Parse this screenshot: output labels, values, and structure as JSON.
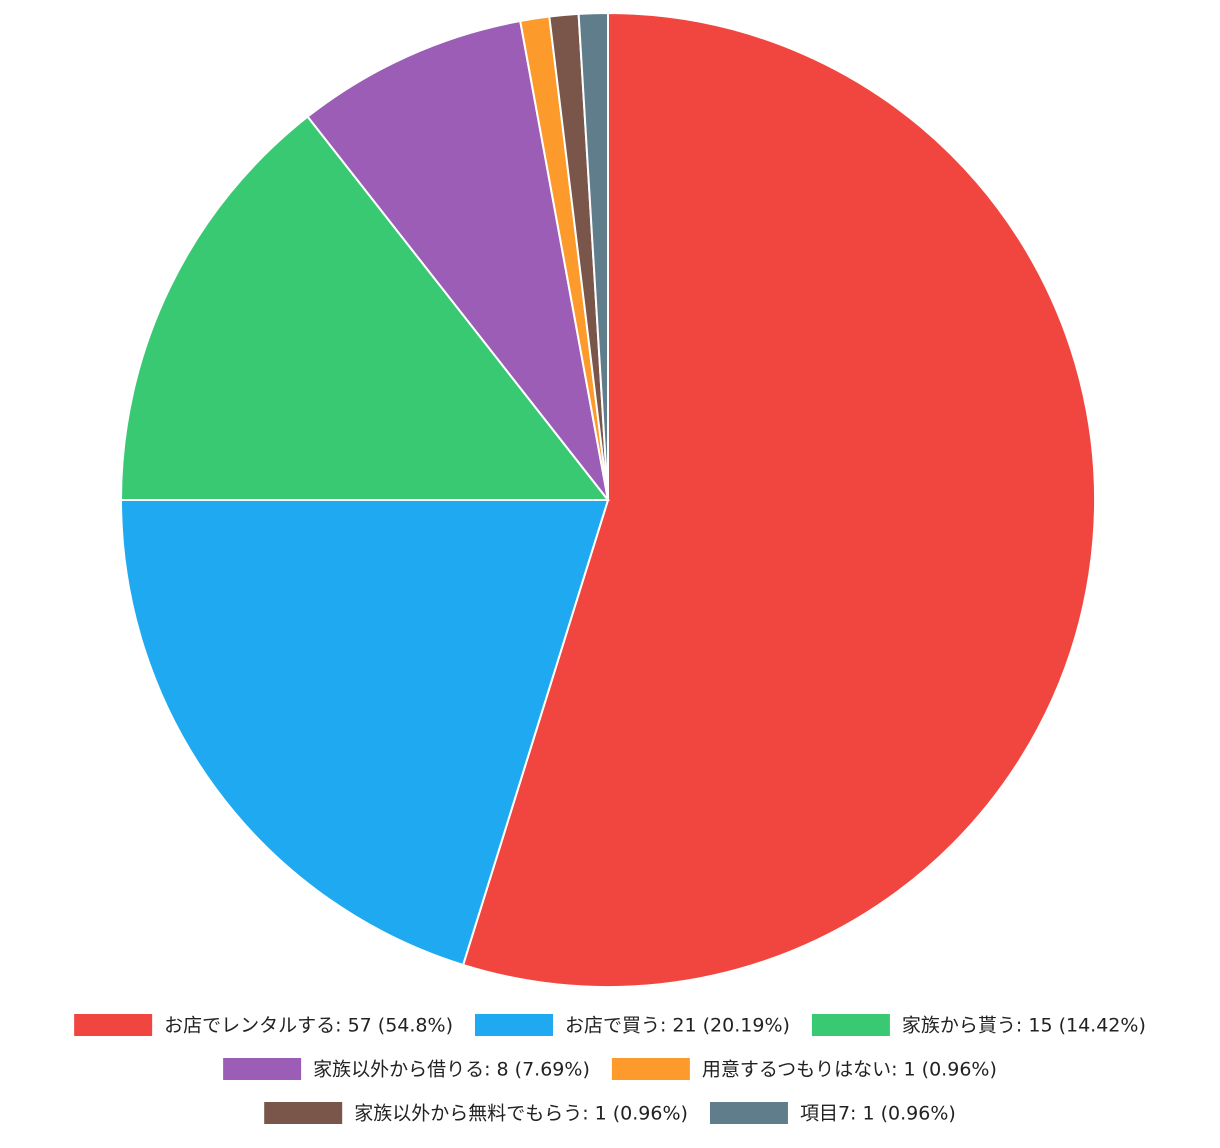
{
  "chart_data": {
    "type": "pie",
    "labels": [
      "お店でレンタルする: 57 (54.8%)",
      "お店で買う: 21 (20.19%)",
      "家族から貰う: 15 (14.42%)",
      "家族以外から借りる: 8 (7.69%)",
      "用意するつもりはない: 1 (0.96%)",
      "家族以外から無料でもらう: 1 (0.96%)",
      "項目7: 1 (0.96%)"
    ],
    "values": [
      57,
      21,
      15,
      8,
      1,
      1,
      1
    ],
    "colors": [
      "#f1463f",
      "#1fa9f0",
      "#3ac973",
      "#9b5db5",
      "#fc9a2c",
      "#79554a",
      "#5f7d8b"
    ],
    "legend": "bottom"
  }
}
